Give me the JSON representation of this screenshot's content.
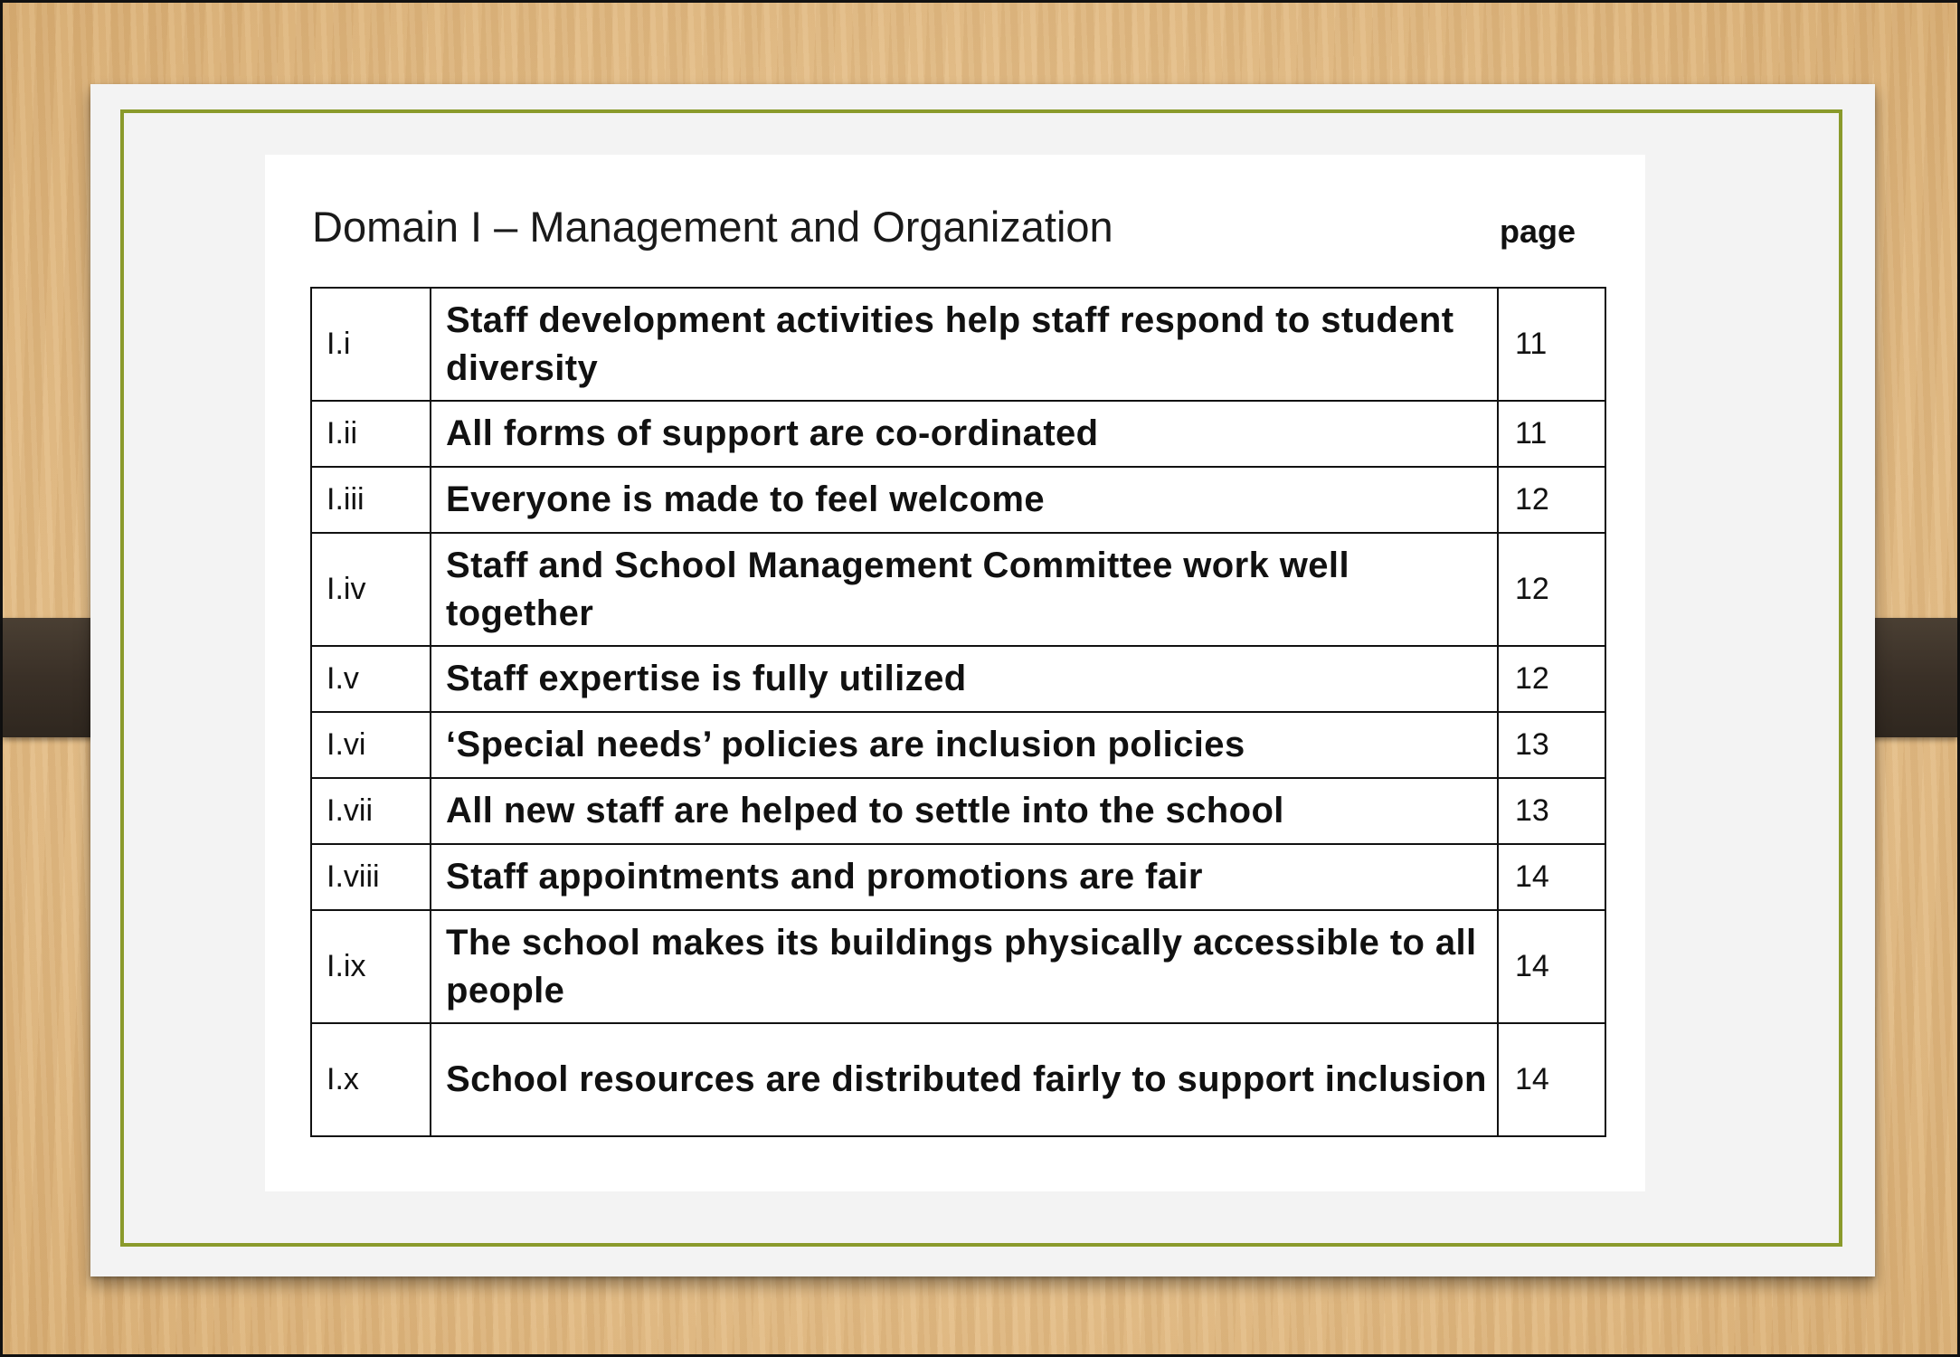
{
  "document": {
    "title": "Domain I – Management and Organization",
    "page_header": "page",
    "rows": [
      {
        "num": "I.i",
        "text": "Staff development activities help staff respond to student diversity",
        "page": "11"
      },
      {
        "num": "I.ii",
        "text": "All forms of support are co-ordinated",
        "page": "11"
      },
      {
        "num": "I.iii",
        "text": "Everyone is made to feel welcome",
        "page": "12"
      },
      {
        "num": "I.iv",
        "text": "Staff and School Management Committee work well together",
        "page": "12"
      },
      {
        "num": "I.v",
        "text": "Staff expertise is fully utilized",
        "page": "12"
      },
      {
        "num": "I.vi",
        "text": "‘Special needs’ policies are inclusion policies",
        "page": "13"
      },
      {
        "num": "I.vii",
        "text": "All new staff are helped to settle into the school",
        "page": "13"
      },
      {
        "num": "I.viii",
        "text": "Staff appointments and promotions are fair",
        "page": "14"
      },
      {
        "num": "I.ix",
        "text": "The school makes its buildings physically accessible to all people",
        "page": "14"
      },
      {
        "num": "I.x",
        "text": "School resources are distributed fairly to support inclusion",
        "page": "14"
      }
    ]
  },
  "colors": {
    "frame_border": "#8a9a2b",
    "strap": "#3a3027"
  }
}
